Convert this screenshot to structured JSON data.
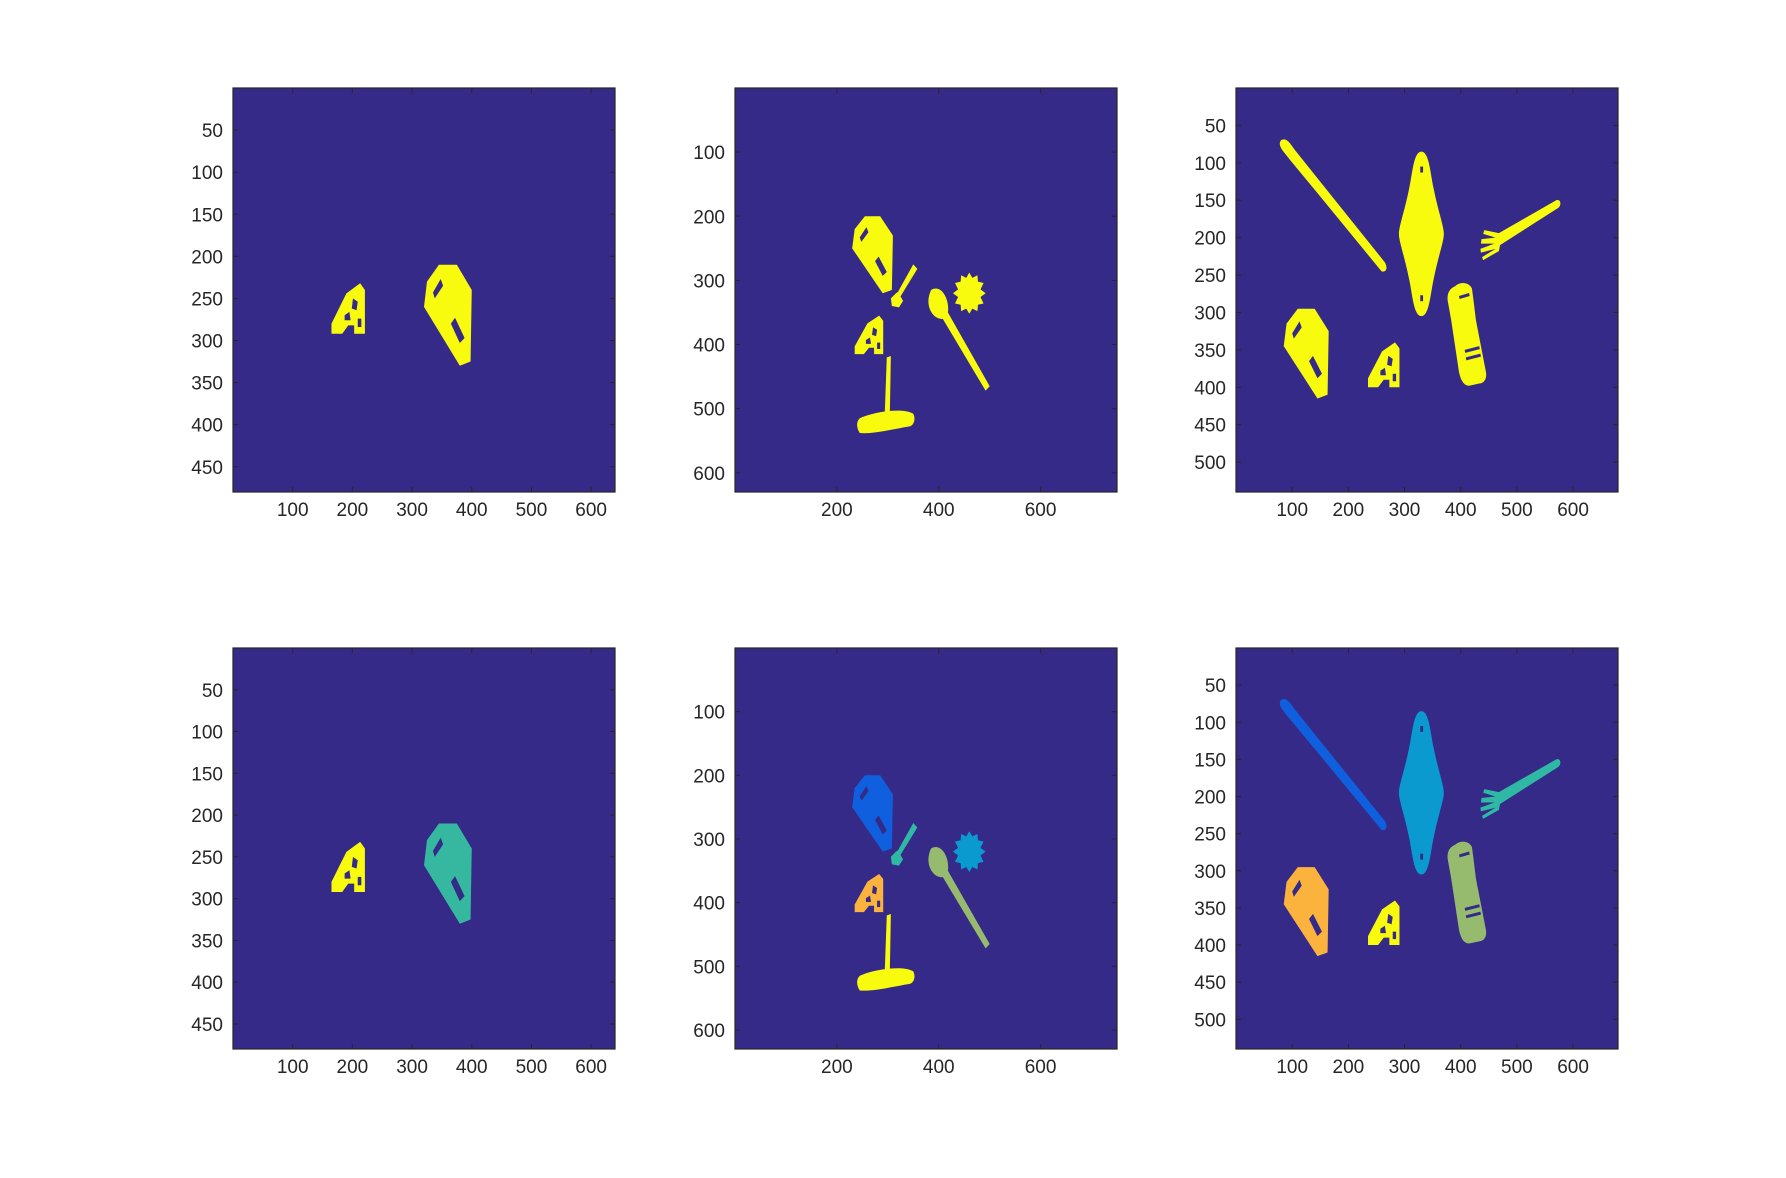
{
  "colors": {
    "background": "#352a87",
    "mask": "#f9fb0e",
    "teal": "#36b8a0",
    "blue_dark": "#0f5fde",
    "blue_mid": "#0a9ad0",
    "teal_light": "#2fb9a5",
    "sage": "#96ba6e",
    "orange": "#fbb33e",
    "yellow": "#f9fb0e"
  },
  "chart_data": [
    {
      "type": "heatmap",
      "panel": "binary-mask-1",
      "xlim": [
        0,
        640
      ],
      "ylim": [
        0,
        480
      ],
      "y_reversed": true,
      "xticks": [
        "100",
        "200",
        "300",
        "400",
        "500",
        "600"
      ],
      "xtick_values": [
        100,
        200,
        300,
        400,
        500,
        600
      ],
      "yticks": [
        "50",
        "100",
        "150",
        "200",
        "250",
        "300",
        "350",
        "400",
        "450"
      ],
      "ytick_values": [
        50,
        100,
        150,
        200,
        250,
        300,
        350,
        400,
        450
      ],
      "objects": [
        {
          "name": "a-bracket",
          "color": "yellow",
          "cx": 195,
          "cy": 262
        },
        {
          "name": "phone-case",
          "color": "yellow",
          "cx": 360,
          "cy": 265
        }
      ]
    },
    {
      "type": "heatmap",
      "panel": "binary-mask-2",
      "xlim": [
        0,
        750
      ],
      "ylim": [
        0,
        630
      ],
      "y_reversed": true,
      "xticks": [
        "200",
        "400",
        "600"
      ],
      "xtick_values": [
        200,
        400,
        600
      ],
      "yticks": [
        "100",
        "200",
        "300",
        "400",
        "500",
        "600"
      ],
      "ytick_values": [
        100,
        200,
        300,
        400,
        500,
        600
      ],
      "objects": [
        {
          "name": "phone-case",
          "color": "yellow",
          "cx": 270,
          "cy": 255
        },
        {
          "name": "key",
          "color": "yellow",
          "cx": 320,
          "cy": 320
        },
        {
          "name": "gear",
          "color": "yellow",
          "cx": 460,
          "cy": 320
        },
        {
          "name": "a-bracket",
          "color": "yellow",
          "cx": 265,
          "cy": 385
        },
        {
          "name": "spoon",
          "color": "yellow",
          "cx": 430,
          "cy": 400
        },
        {
          "name": "hammer",
          "color": "yellow",
          "cx": 300,
          "cy": 460
        }
      ]
    },
    {
      "type": "heatmap",
      "panel": "binary-mask-3",
      "xlim": [
        0,
        680
      ],
      "ylim": [
        0,
        540
      ],
      "y_reversed": true,
      "xticks": [
        "100",
        "200",
        "300",
        "400",
        "500",
        "600"
      ],
      "xtick_values": [
        100,
        200,
        300,
        400,
        500,
        600
      ],
      "yticks": [
        "50",
        "100",
        "150",
        "200",
        "250",
        "300",
        "350",
        "400",
        "450",
        "500"
      ],
      "ytick_values": [
        50,
        100,
        150,
        200,
        250,
        300,
        350,
        400,
        450,
        500
      ],
      "objects": [
        {
          "name": "knife",
          "color": "yellow",
          "cx": 185,
          "cy": 175
        },
        {
          "name": "diamond-plate",
          "color": "yellow",
          "cx": 330,
          "cy": 195
        },
        {
          "name": "fork",
          "color": "yellow",
          "cx": 470,
          "cy": 180
        },
        {
          "name": "phone-case",
          "color": "yellow",
          "cx": 125,
          "cy": 350
        },
        {
          "name": "a-bracket",
          "color": "yellow",
          "cx": 265,
          "cy": 370
        },
        {
          "name": "bottle",
          "color": "yellow",
          "cx": 405,
          "cy": 340
        }
      ]
    },
    {
      "type": "heatmap",
      "panel": "label-map-1",
      "xlim": [
        0,
        640
      ],
      "ylim": [
        0,
        480
      ],
      "y_reversed": true,
      "xticks": [
        "100",
        "200",
        "300",
        "400",
        "500",
        "600"
      ],
      "xtick_values": [
        100,
        200,
        300,
        400,
        500,
        600
      ],
      "yticks": [
        "50",
        "100",
        "150",
        "200",
        "250",
        "300",
        "350",
        "400",
        "450"
      ],
      "ytick_values": [
        50,
        100,
        150,
        200,
        250,
        300,
        350,
        400,
        450
      ],
      "objects": [
        {
          "name": "a-bracket",
          "color": "yellow",
          "cx": 195,
          "cy": 262
        },
        {
          "name": "phone-case",
          "color": "teal",
          "cx": 360,
          "cy": 265
        }
      ]
    },
    {
      "type": "heatmap",
      "panel": "label-map-2",
      "xlim": [
        0,
        750
      ],
      "ylim": [
        0,
        630
      ],
      "y_reversed": true,
      "xticks": [
        "200",
        "400",
        "600"
      ],
      "xtick_values": [
        200,
        400,
        600
      ],
      "yticks": [
        "100",
        "200",
        "300",
        "400",
        "500",
        "600"
      ],
      "ytick_values": [
        100,
        200,
        300,
        400,
        500,
        600
      ],
      "objects": [
        {
          "name": "phone-case",
          "color": "blue_dark",
          "cx": 270,
          "cy": 255
        },
        {
          "name": "key",
          "color": "teal_light",
          "cx": 320,
          "cy": 320
        },
        {
          "name": "gear",
          "color": "blue_mid",
          "cx": 460,
          "cy": 320
        },
        {
          "name": "a-bracket",
          "color": "orange",
          "cx": 265,
          "cy": 385
        },
        {
          "name": "spoon",
          "color": "sage",
          "cx": 430,
          "cy": 400
        },
        {
          "name": "hammer",
          "color": "yellow",
          "cx": 300,
          "cy": 460
        }
      ]
    },
    {
      "type": "heatmap",
      "panel": "label-map-3",
      "xlim": [
        0,
        680
      ],
      "ylim": [
        0,
        540
      ],
      "y_reversed": true,
      "xticks": [
        "100",
        "200",
        "300",
        "400",
        "500",
        "600"
      ],
      "xtick_values": [
        100,
        200,
        300,
        400,
        500,
        600
      ],
      "yticks": [
        "50",
        "100",
        "150",
        "200",
        "250",
        "300",
        "350",
        "400",
        "450",
        "500"
      ],
      "ytick_values": [
        50,
        100,
        150,
        200,
        250,
        300,
        350,
        400,
        450,
        500
      ],
      "objects": [
        {
          "name": "knife",
          "color": "blue_dark",
          "cx": 185,
          "cy": 175
        },
        {
          "name": "diamond-plate",
          "color": "blue_mid",
          "cx": 330,
          "cy": 195
        },
        {
          "name": "fork",
          "color": "teal_light",
          "cx": 470,
          "cy": 180
        },
        {
          "name": "phone-case",
          "color": "orange",
          "cx": 125,
          "cy": 350
        },
        {
          "name": "a-bracket",
          "color": "yellow",
          "cx": 265,
          "cy": 370
        },
        {
          "name": "bottle",
          "color": "sage",
          "cx": 405,
          "cy": 340
        }
      ]
    }
  ]
}
